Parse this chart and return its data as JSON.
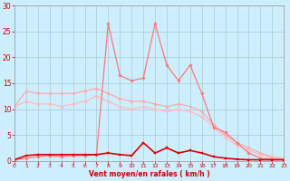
{
  "xlabel": "Vent moyen/en rafales ( km/h )",
  "background_color": "#cceeff",
  "grid_color": "#aacccc",
  "x": [
    0,
    1,
    2,
    3,
    4,
    5,
    6,
    7,
    8,
    9,
    10,
    11,
    12,
    13,
    14,
    15,
    16,
    17,
    18,
    19,
    20,
    21,
    22,
    23
  ],
  "line1_y": [
    10.5,
    13.5,
    13.0,
    13.0,
    13.0,
    13.0,
    13.5,
    14.0,
    13.0,
    12.0,
    11.5,
    11.5,
    11.0,
    10.5,
    11.0,
    10.5,
    9.5,
    7.0,
    5.0,
    3.5,
    2.5,
    1.5,
    0.8,
    0.4
  ],
  "line2_y": [
    10.5,
    11.5,
    11.0,
    11.0,
    10.5,
    11.0,
    11.5,
    12.5,
    11.5,
    10.5,
    10.0,
    10.5,
    10.0,
    9.5,
    10.0,
    9.5,
    8.5,
    6.5,
    4.5,
    3.0,
    2.0,
    1.2,
    0.6,
    0.3
  ],
  "line3_y": [
    0.2,
    0.5,
    0.8,
    1.0,
    0.8,
    1.0,
    1.0,
    1.2,
    26.5,
    16.5,
    15.5,
    16.0,
    26.5,
    18.5,
    15.5,
    18.5,
    13.0,
    6.5,
    5.5,
    3.5,
    1.5,
    0.5,
    0.3,
    0.2
  ],
  "line4_y": [
    0.2,
    1.0,
    1.2,
    1.2,
    1.2,
    1.2,
    1.2,
    1.2,
    1.5,
    1.2,
    1.0,
    3.5,
    1.5,
    2.5,
    1.5,
    2.0,
    1.5,
    0.8,
    0.5,
    0.3,
    0.2,
    0.2,
    0.2,
    0.2
  ],
  "line1_color": "#ffaaaa",
  "line2_color": "#ffbbbb",
  "line3_color": "#ff7777",
  "line4_color": "#dd0000",
  "ylim": [
    0,
    30
  ],
  "xlim": [
    0,
    23
  ],
  "yticks": [
    0,
    5,
    10,
    15,
    20,
    25,
    30
  ],
  "xticks": [
    0,
    1,
    2,
    3,
    4,
    5,
    6,
    7,
    8,
    9,
    10,
    11,
    12,
    13,
    14,
    15,
    16,
    17,
    18,
    19,
    20,
    21,
    22,
    23
  ],
  "tick_fontsize_x": 4.5,
  "tick_fontsize_y": 5.5
}
